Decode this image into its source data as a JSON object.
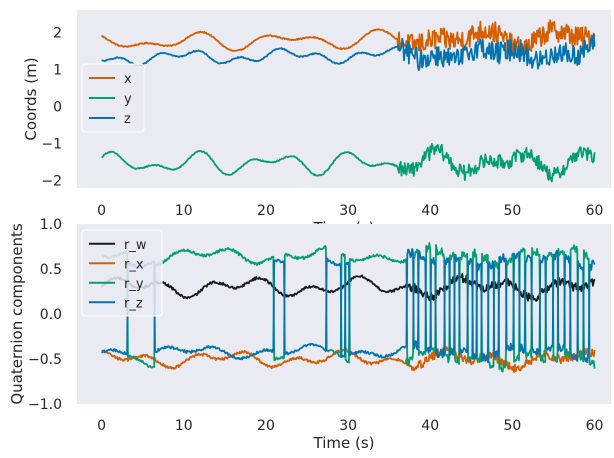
{
  "chart_data": [
    {
      "type": "line",
      "xlabel": "Time (s)",
      "ylabel": "Coords (m)",
      "xlim": [
        -3,
        62
      ],
      "ylim": [
        -2.2,
        2.6
      ],
      "xticks": [
        0,
        10,
        20,
        30,
        40,
        50,
        60
      ],
      "yticks": [
        -2,
        -1,
        0,
        1,
        2
      ],
      "legend_loc": "center-left",
      "series": [
        {
          "name": "x",
          "color": "#d55e00",
          "base": 1.72,
          "amp": 0.28,
          "noise_after": 36,
          "noise_amp": 0.3
        },
        {
          "name": "y",
          "color": "#029e73",
          "base": -1.55,
          "amp": 0.35,
          "noise_after": 36,
          "noise_amp": 0.2
        },
        {
          "name": "z",
          "color": "#0173b2",
          "base": 1.3,
          "amp": 0.22,
          "noise_after": 36,
          "noise_amp": 0.3
        }
      ]
    },
    {
      "type": "line",
      "xlabel": "Time (s)",
      "ylabel": "Quaternion components",
      "xlim": [
        -3,
        62
      ],
      "ylim": [
        -1.0,
        1.0
      ],
      "xticks": [
        0,
        10,
        20,
        30,
        40,
        50,
        60
      ],
      "yticks": [
        -1.0,
        -0.5,
        0.0,
        0.5,
        1.0
      ],
      "legend_loc": "upper-left",
      "series": [
        {
          "name": "r_w",
          "color": "#1a1a1a",
          "base": 0.3,
          "amp": 0.12
        },
        {
          "name": "r_x",
          "color": "#d55e00",
          "base": -0.5,
          "amp": 0.1
        },
        {
          "name": "r_y",
          "color": "#029e73",
          "base": 0.65,
          "amp": 0.1
        },
        {
          "name": "r_z",
          "color": "#0173b2",
          "base": -0.42,
          "amp": 0.08
        }
      ],
      "flip_times": [
        3.2,
        6.5,
        21,
        22.3,
        27.4,
        29.2,
        29.7,
        30.2,
        37.2,
        38.0,
        38.6,
        39.5,
        40.1,
        40.7,
        41.8,
        42.4,
        43.0,
        43.6,
        44.6,
        45.2,
        45.7,
        46.3,
        47.1,
        47.8,
        48.4,
        49.3,
        50.2,
        50.9,
        51.6,
        52.4,
        53.4,
        54.1,
        55.0,
        55.6,
        56.4,
        57.1,
        58.0,
        58.7,
        59.4
      ]
    }
  ]
}
